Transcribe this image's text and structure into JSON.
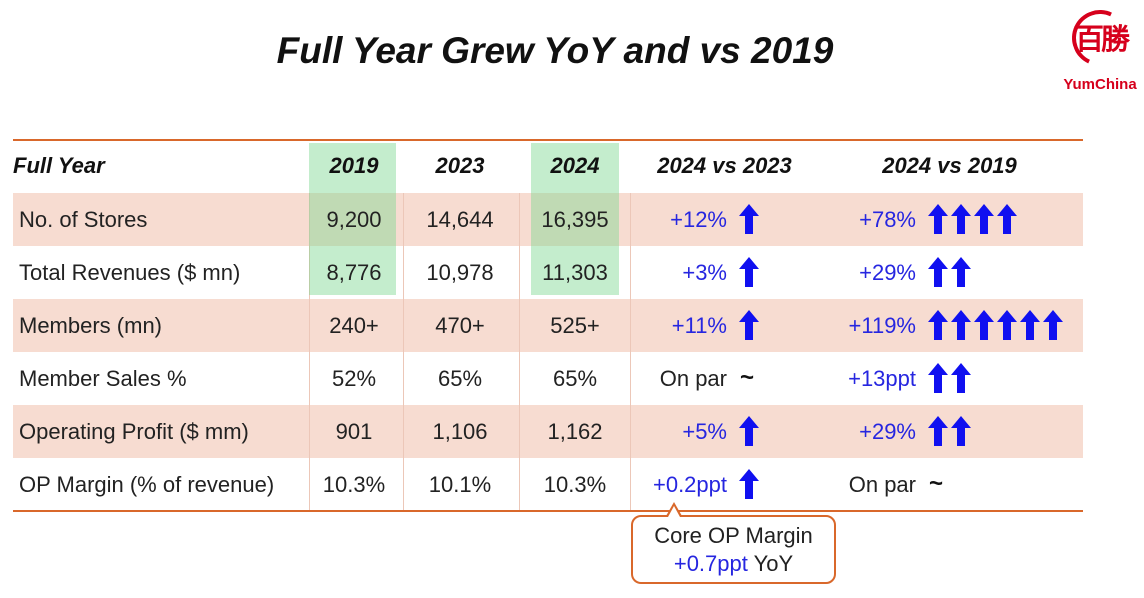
{
  "title": "Full Year Grew YoY and vs 2019",
  "logo": {
    "text": "YumChina",
    "glyph": "百勝"
  },
  "colors": {
    "accent": "#d9682b",
    "band": "#f7dcd1",
    "highlight": "#7dd791",
    "positive": "#2626e0",
    "brand": "#d6001c"
  },
  "table": {
    "headers": [
      "Full Year",
      "2019",
      "2023",
      "2024",
      "2024 vs 2023",
      "2024 vs 2019"
    ],
    "rows": [
      {
        "label": "No. of Stores",
        "v2019": "9,200",
        "v2023": "14,644",
        "v2024": "16,395",
        "vs2023": "+12%",
        "vs2023_arrows": 1,
        "vs2019": "+78%",
        "vs2019_arrows": 4
      },
      {
        "label": "Total Revenues ($ mn)",
        "v2019": "8,776",
        "v2023": "10,978",
        "v2024": "11,303",
        "vs2023": "+3%",
        "vs2023_arrows": 1,
        "vs2019": "+29%",
        "vs2019_arrows": 2
      },
      {
        "label": "Members (mn)",
        "v2019": "240+",
        "v2023": "470+",
        "v2024": "525+",
        "vs2023": "+11%",
        "vs2023_arrows": 1,
        "vs2019": "+119%",
        "vs2019_arrows": 6
      },
      {
        "label": "Member Sales %",
        "v2019": "52%",
        "v2023": "65%",
        "v2024": "65%",
        "vs2023": "On par",
        "vs2023_arrows": 0,
        "vs2019": "+13ppt",
        "vs2019_arrows": 2
      },
      {
        "label": "Operating Profit  ($ mm)",
        "v2019": "901",
        "v2023": "1,106",
        "v2024": "1,162",
        "vs2023": "+5%",
        "vs2023_arrows": 1,
        "vs2019": "+29%",
        "vs2019_arrows": 2
      },
      {
        "label": "OP Margin (% of revenue)",
        "v2019": "10.3%",
        "v2023": "10.1%",
        "v2024": "10.3%",
        "vs2023": "+0.2ppt",
        "vs2023_arrows": 1,
        "vs2019": "On par",
        "vs2019_arrows": 0
      }
    ],
    "flat_symbol": "~"
  },
  "callout": {
    "line1": "Core OP Margin",
    "line2_value": "+0.7ppt",
    "line2_suffix": " YoY"
  }
}
